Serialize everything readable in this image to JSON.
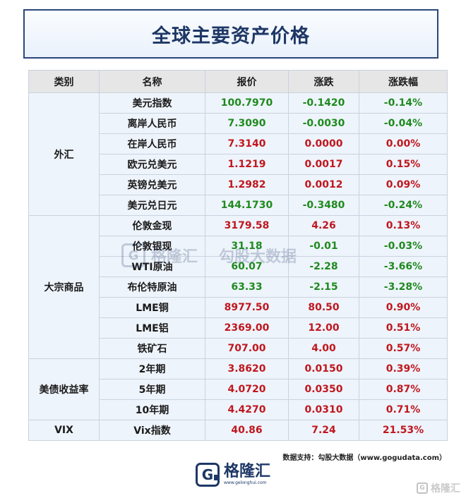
{
  "title": "全球主要资产价格",
  "headers": [
    "类别",
    "名称",
    "报价",
    "涨跌",
    "涨跌幅"
  ],
  "rows": [
    {
      "category": "外汇",
      "span": 6,
      "name": "美元指数",
      "price": "100.7970",
      "change": "-0.1420",
      "pct": "-0.14%",
      "dir": "down"
    },
    {
      "name": "离岸人民币",
      "price": "7.3090",
      "change": "-0.0030",
      "pct": "-0.04%",
      "dir": "down"
    },
    {
      "name": "在岸人民币",
      "price": "7.3140",
      "change": "0.0000",
      "pct": "0.00%",
      "dir": "flat"
    },
    {
      "name": "欧元兑美元",
      "price": "1.1219",
      "change": "0.0017",
      "pct": "0.15%",
      "dir": "up"
    },
    {
      "name": "英镑兑美元",
      "price": "1.2982",
      "change": "0.0012",
      "pct": "0.09%",
      "dir": "up"
    },
    {
      "name": "美元兑日元",
      "price": "144.1730",
      "change": "-0.3480",
      "pct": "-0.24%",
      "dir": "down"
    },
    {
      "category": "大宗商品",
      "span": 7,
      "name": "伦敦金现",
      "price": "3179.58",
      "change": "4.26",
      "pct": "0.13%",
      "dir": "up"
    },
    {
      "name": "伦敦银现",
      "price": "31.18",
      "change": "-0.01",
      "pct": "-0.03%",
      "dir": "down"
    },
    {
      "name": "WTI原油",
      "price": "60.07",
      "change": "-2.28",
      "pct": "-3.66%",
      "dir": "down"
    },
    {
      "name": "布伦特原油",
      "price": "63.33",
      "change": "-2.15",
      "pct": "-3.28%",
      "dir": "down"
    },
    {
      "name": "LME铜",
      "price": "8977.50",
      "change": "80.50",
      "pct": "0.90%",
      "dir": "up"
    },
    {
      "name": "LME铝",
      "price": "2369.00",
      "change": "12.00",
      "pct": "0.51%",
      "dir": "up"
    },
    {
      "name": "铁矿石",
      "price": "707.00",
      "change": "4.00",
      "pct": "0.57%",
      "dir": "up"
    },
    {
      "category": "美债收益率",
      "span": 3,
      "name": "2年期",
      "price": "3.8620",
      "change": "0.0150",
      "pct": "0.39%",
      "dir": "up"
    },
    {
      "name": "5年期",
      "price": "4.0720",
      "change": "0.0350",
      "pct": "0.87%",
      "dir": "up"
    },
    {
      "name": "10年期",
      "price": "4.4270",
      "change": "0.0310",
      "pct": "0.71%",
      "dir": "up"
    },
    {
      "category": "VIX",
      "span": 1,
      "name": "Vix指数",
      "price": "40.86",
      "change": "7.24",
      "pct": "21.53%",
      "dir": "up"
    }
  ],
  "watermark": {
    "brand": "格隆汇",
    "partner": "勾股大数据",
    "url": "www.gogudata.com"
  },
  "source": "数据支持：勾股大数据（www.gogudata.com）",
  "logo": {
    "text": "格隆汇",
    "url": "www.gelonghui.com"
  },
  "corner": "格隆汇",
  "colors": {
    "up": "#c0171f",
    "down": "#1f8a1f",
    "title": "#1e3766",
    "row_bg": "#eef4fb",
    "header_bg": "#e6e6e6"
  }
}
